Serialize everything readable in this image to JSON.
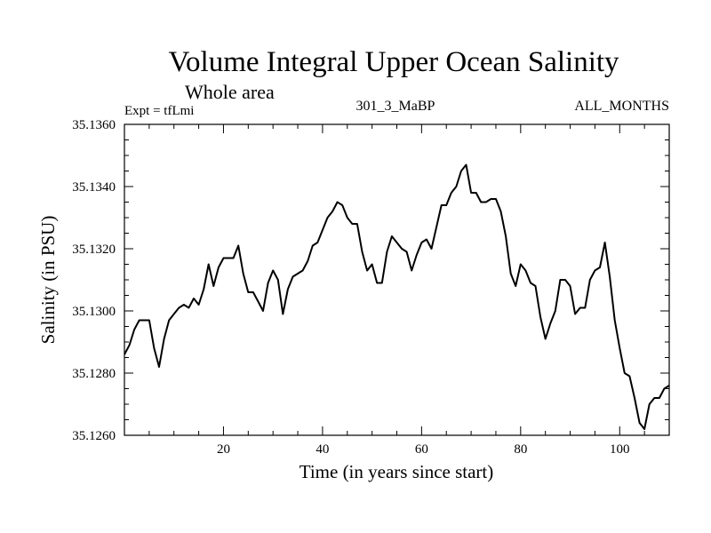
{
  "chart_data": {
    "type": "line",
    "title": "Volume Integral Upper Ocean Salinity",
    "subtitle": "Whole area",
    "annotations": {
      "experiment": "Expt = tfLmi",
      "run": "301_3_MaBP",
      "months": "ALL_MONTHS"
    },
    "xlabel": "Time (in years since start)",
    "ylabel": "Salinity (in PSU)",
    "xlim": [
      0,
      110
    ],
    "ylim": [
      35.126,
      35.136
    ],
    "x_ticks": [
      20,
      40,
      60,
      80,
      100
    ],
    "x_tick_labels": [
      "20",
      "40",
      "60",
      "80",
      "100"
    ],
    "y_ticks": [
      35.126,
      35.128,
      35.13,
      35.132,
      35.134,
      35.136
    ],
    "y_tick_labels": [
      "35.1260",
      "35.1280",
      "35.1300",
      "35.1320",
      "35.1340",
      "35.1360"
    ],
    "grid": false,
    "series": [
      {
        "name": "Salinity",
        "x": [
          0,
          1,
          2,
          3,
          4,
          5,
          6,
          7,
          8,
          9,
          10,
          11,
          12,
          13,
          14,
          15,
          16,
          17,
          18,
          19,
          20,
          21,
          22,
          23,
          24,
          25,
          26,
          27,
          28,
          29,
          30,
          31,
          32,
          33,
          34,
          35,
          36,
          37,
          38,
          39,
          40,
          41,
          42,
          43,
          44,
          45,
          46,
          47,
          48,
          49,
          50,
          51,
          52,
          53,
          54,
          55,
          56,
          57,
          58,
          59,
          60,
          61,
          62,
          63,
          64,
          65,
          66,
          67,
          68,
          69,
          70,
          71,
          72,
          73,
          74,
          75,
          76,
          77,
          78,
          79,
          80,
          81,
          82,
          83,
          84,
          85,
          86,
          87,
          88,
          89,
          90,
          91,
          92,
          93,
          94,
          95,
          96,
          97,
          98,
          99,
          100,
          101,
          102,
          103,
          104,
          105,
          106,
          107,
          108,
          109,
          110
        ],
        "y": [
          35.1286,
          35.1289,
          35.1294,
          35.1297,
          35.1297,
          35.1297,
          35.1288,
          35.1282,
          35.1291,
          35.1297,
          35.1299,
          35.1301,
          35.1302,
          35.1301,
          35.1304,
          35.1302,
          35.1307,
          35.1315,
          35.1308,
          35.1314,
          35.1317,
          35.1317,
          35.1317,
          35.1321,
          35.1312,
          35.1306,
          35.1306,
          35.1303,
          35.13,
          35.1309,
          35.1313,
          35.131,
          35.1299,
          35.1307,
          35.1311,
          35.1312,
          35.1313,
          35.1316,
          35.1321,
          35.1322,
          35.1326,
          35.133,
          35.1332,
          35.1335,
          35.1334,
          35.133,
          35.1328,
          35.1328,
          35.1319,
          35.1313,
          35.1315,
          35.1309,
          35.1309,
          35.1319,
          35.1324,
          35.1322,
          35.132,
          35.1319,
          35.1313,
          35.1318,
          35.1322,
          35.1323,
          35.132,
          35.1327,
          35.1334,
          35.1334,
          35.1338,
          35.134,
          35.1345,
          35.1347,
          35.1338,
          35.1338,
          35.1335,
          35.1335,
          35.1336,
          35.1336,
          35.1332,
          35.1324,
          35.1312,
          35.1308,
          35.1315,
          35.1313,
          35.1309,
          35.1308,
          35.1298,
          35.1291,
          35.1296,
          35.13,
          35.131,
          35.131,
          35.1308,
          35.1299,
          35.1301,
          35.1301,
          35.131,
          35.1313,
          35.1314,
          35.1322,
          35.1311,
          35.1297,
          35.1288,
          35.128,
          35.1279,
          35.1272,
          35.1264,
          35.1262,
          35.127,
          35.1272,
          35.1272,
          35.1275,
          35.1276
        ]
      }
    ]
  }
}
